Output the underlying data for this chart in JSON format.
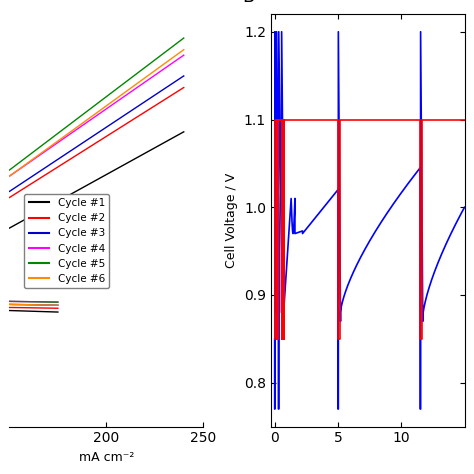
{
  "ylabel_B": "Cell Voltage / V",
  "ylim_B": [
    0.75,
    1.22
  ],
  "xlim_B": [
    -0.3,
    15
  ],
  "yticks_B": [
    0.8,
    0.9,
    1.0,
    1.1,
    1.2
  ],
  "xticks_B": [
    0,
    5,
    10
  ],
  "red_color": "#FF0000",
  "blue_color": "#0000FF",
  "panel_label_B": "B",
  "legend_labels": [
    "Cycle #1",
    "Cycle #2",
    "Cycle #3",
    "Cycle #4",
    "Cycle #5",
    "Cycle #6"
  ],
  "legend_colors": [
    "#000000",
    "#FF0000",
    "#0000CC",
    "#FF00FF",
    "#008800",
    "#FF8C00"
  ],
  "left_xlim": [
    150,
    250
  ],
  "left_ylim": [
    0.0,
    1.35
  ],
  "xlabel_left": "mA cm⁻²",
  "ylabel_left": ""
}
